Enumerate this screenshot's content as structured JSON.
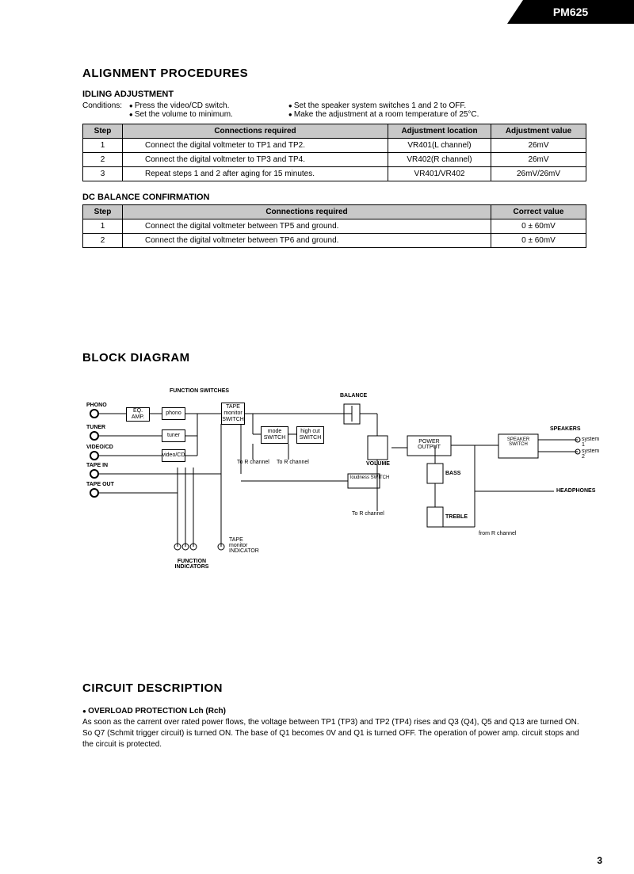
{
  "model": "PM625",
  "page_number": "3",
  "sections": {
    "align_title": "ALIGNMENT PROCEDURES",
    "idling": {
      "title": "IDLING ADJUSTMENT",
      "cond_label": "Conditions:",
      "left_conds": [
        "Press the video/CD switch.",
        "Set the volume to minimum."
      ],
      "right_conds": [
        "Set the speaker system switches 1 and 2 to OFF.",
        "Make the adjustment at a room temperature of 25°C."
      ],
      "table": {
        "headers": [
          "Step",
          "Connections required",
          "Adjustment location",
          "Adjustment value"
        ],
        "rows": [
          [
            "1",
            "Connect the digital voltmeter to TP1 and TP2.",
            "VR401(L channel)",
            "26mV"
          ],
          [
            "2",
            "Connect the digital voltmeter to TP3 and TP4.",
            "VR402(R channel)",
            "26mV"
          ],
          [
            "3",
            "Repeat steps 1 and 2 after aging for 15 minutes.",
            "VR401/VR402",
            "26mV/26mV"
          ]
        ]
      }
    },
    "dc": {
      "title": "DC BALANCE CONFIRMATION",
      "table": {
        "headers": [
          "Step",
          "Connections required",
          "Correct value"
        ],
        "rows": [
          [
            "1",
            "Connect the digital voltmeter between TP5 and ground.",
            "0 ± 60mV"
          ],
          [
            "2",
            "Connect the digital voltmeter between TP6 and ground.",
            "0 ± 60mV"
          ]
        ]
      }
    },
    "block_title": "BLOCK DIAGRAM",
    "diagram": {
      "labels": {
        "func_sw": "FUNCTION SWITCHES",
        "phono": "PHONO",
        "tuner": "TUNER",
        "videocd": "VIDEO/CD",
        "tapein": "TAPE IN",
        "tapeout": "TAPE OUT",
        "eq": "EQ. AMP.",
        "phono_sw": "phono",
        "tuner_sw": "tuner",
        "vcd_sw": "video/CD",
        "tape_mon": "TAPE monitor SWITCH",
        "mode": "mode SWITCH",
        "highcut": "high cut SWITCH",
        "torch1": "To R channel",
        "torch2": "To R channel",
        "balance": "BALANCE",
        "volume": "VOLUME",
        "loudness": "loudness SWITCH",
        "torch3": "To R channel",
        "power": "POWER OUTPUT",
        "bass": "BASS",
        "treble": "TREBLE",
        "fromr": "from R channel",
        "speaker_sw": "SPEAKER SWITCH",
        "speakers": "SPEAKERS",
        "sys1": "system 1",
        "sys2": "system 2",
        "headphones": "HEADPHONES",
        "tape_ind": "TAPE monitor INDICATOR",
        "func_ind": "FUNCTION INDICATORS"
      }
    },
    "circuit": {
      "title": "CIRCUIT DESCRIPTION",
      "sub": "OVERLOAD PROTECTION Lch (Rch)",
      "body": "As soon as the carrent over rated power flows, the voltage between TP1 (TP3) and TP2 (TP4) rises and Q3 (Q4), Q5 and Q13 are turned ON. So Q7 (Schmit trigger circuit) is turned ON. The base of Q1 becomes 0V and Q1 is turned OFF. The operation of power amp. circuit stops and the circuit is protected."
    }
  }
}
